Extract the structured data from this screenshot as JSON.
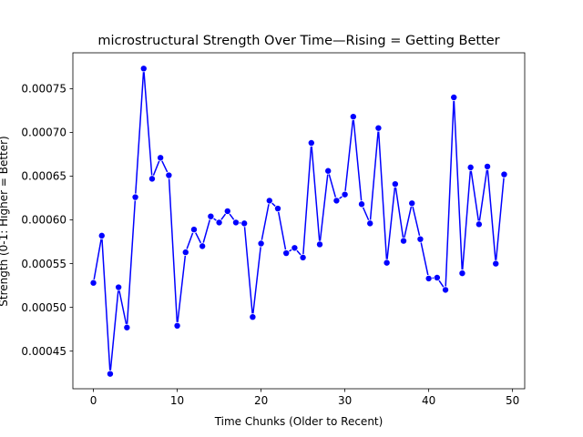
{
  "chart_data": {
    "type": "line",
    "title": "microstructural Strength Over Time—Rising = Getting Better",
    "xlabel": "Time Chunks (Older to Recent)",
    "ylabel": "Strength (0-1: Higher = Better)",
    "xlim": [
      -2.45,
      51.45
    ],
    "ylim": [
      0.000407,
      0.000791
    ],
    "x_ticks": [
      0,
      10,
      20,
      30,
      40,
      50
    ],
    "x_tick_labels": [
      "0",
      "10",
      "20",
      "30",
      "40",
      "50"
    ],
    "y_ticks": [
      0.00045,
      0.0005,
      0.00055,
      0.0006,
      0.00065,
      0.0007,
      0.00075
    ],
    "y_tick_labels": [
      "0.00045",
      "0.00050",
      "0.00055",
      "0.00060",
      "0.00065",
      "0.00070",
      "0.00075"
    ],
    "grid": false,
    "colors": {
      "line": "#0000ff",
      "marker": "#0000ff",
      "marker_edge": "#ffffff"
    },
    "series": [
      {
        "x": [
          0,
          1,
          2,
          3,
          4,
          5,
          6,
          7,
          8,
          9,
          10,
          11,
          12,
          13,
          14,
          15,
          16,
          17,
          18,
          19,
          20,
          21,
          22,
          23,
          24,
          25,
          26,
          27,
          28,
          29,
          30,
          31,
          32,
          33,
          34,
          35,
          36,
          37,
          38,
          39,
          40,
          41,
          42,
          43,
          44,
          45,
          46,
          47,
          48,
          49
        ],
        "values": [
          0.000528,
          0.000582,
          0.000424,
          0.000523,
          0.000477,
          0.000626,
          0.000773,
          0.000647,
          0.000671,
          0.000651,
          0.000479,
          0.000563,
          0.000589,
          0.00057,
          0.000604,
          0.000597,
          0.00061,
          0.000597,
          0.000596,
          0.000489,
          0.000573,
          0.000622,
          0.000613,
          0.000562,
          0.000568,
          0.000557,
          0.000688,
          0.000572,
          0.000656,
          0.000622,
          0.000629,
          0.000718,
          0.000618,
          0.000596,
          0.000705,
          0.000551,
          0.000641,
          0.000576,
          0.000619,
          0.000578,
          0.000533,
          0.000534,
          0.00052,
          0.00074,
          0.000539,
          0.00066,
          0.000595,
          0.000661,
          0.00055,
          0.000652
        ]
      }
    ]
  }
}
